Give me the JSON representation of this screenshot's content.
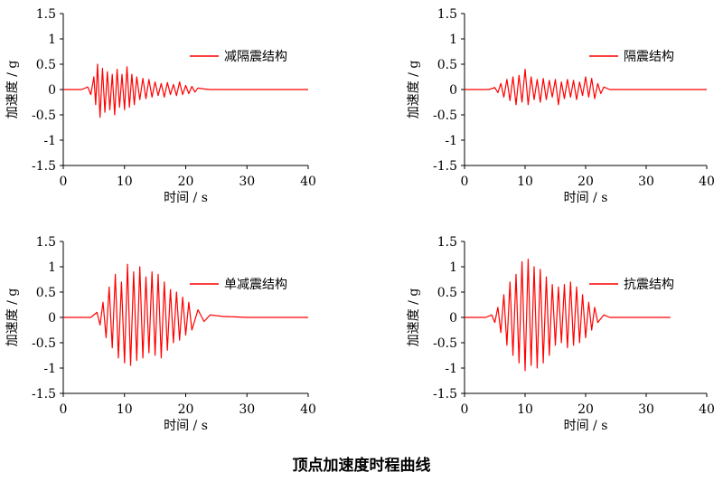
{
  "caption": "顶点加速度时程曲线",
  "chart_data": [
    {
      "type": "line",
      "legend": "减隔震结构",
      "xlabel": "时间 / s",
      "ylabel": "加速度 / g",
      "xlim": [
        0,
        40
      ],
      "ylim": [
        -1.5,
        1.5
      ],
      "xticks": [
        "0",
        "10",
        "20",
        "30",
        "40"
      ],
      "yticks": [
        "1.5",
        "1",
        "0.5",
        "0",
        "-0.5",
        "-1",
        "-1.5"
      ],
      "color": "#ff0000",
      "series": [
        {
          "x": [
            0,
            3,
            4,
            4.5,
            5,
            5.3,
            5.6,
            6,
            6.4,
            6.8,
            7.2,
            7.6,
            8,
            8.4,
            8.8,
            9.2,
            9.6,
            10,
            10.4,
            10.8,
            11.2,
            11.6,
            12,
            12.5,
            13,
            13.5,
            14,
            14.5,
            15,
            15.5,
            16,
            16.5,
            17,
            17.5,
            18,
            18.5,
            19,
            19.5,
            20,
            20.5,
            21,
            21.5,
            22,
            23,
            24,
            40
          ],
          "y": [
            0,
            0,
            0.05,
            -0.1,
            0.25,
            -0.3,
            0.5,
            -0.55,
            0.42,
            -0.45,
            0.35,
            -0.4,
            0.3,
            -0.5,
            0.4,
            -0.35,
            0.3,
            -0.4,
            0.45,
            -0.35,
            0.3,
            -0.3,
            0.25,
            -0.2,
            0.22,
            -0.18,
            0.2,
            -0.15,
            0.15,
            -0.12,
            0.12,
            -0.15,
            0.14,
            -0.1,
            0.1,
            -0.12,
            0.15,
            -0.1,
            0.08,
            -0.08,
            0.06,
            -0.05,
            0.03,
            0.01,
            0,
            0
          ]
        }
      ]
    },
    {
      "type": "line",
      "legend": "隔震结构",
      "xlabel": "时间 / s",
      "ylabel": "加速度 / g",
      "xlim": [
        0,
        40
      ],
      "ylim": [
        -1.5,
        1.5
      ],
      "xticks": [
        "0",
        "10",
        "20",
        "30",
        "40"
      ],
      "yticks": [
        "1.5",
        "1",
        "0.5",
        "0",
        "-0.5",
        "-1",
        "-1.5"
      ],
      "color": "#ff0000",
      "series": [
        {
          "x": [
            0,
            4,
            5,
            5.5,
            6,
            6.5,
            7,
            7.5,
            8,
            8.5,
            9,
            9.5,
            10,
            10.5,
            11,
            11.5,
            12,
            12.5,
            13,
            13.5,
            14,
            14.5,
            15,
            15.5,
            16,
            16.5,
            17,
            17.5,
            18,
            18.5,
            19,
            19.5,
            20,
            20.5,
            21,
            21.5,
            22,
            22.5,
            23,
            24,
            40
          ],
          "y": [
            0,
            0,
            0.04,
            -0.06,
            0.12,
            -0.15,
            0.2,
            -0.22,
            0.25,
            -0.3,
            0.28,
            -0.25,
            0.4,
            -0.3,
            0.25,
            -0.2,
            0.2,
            -0.25,
            0.22,
            -0.2,
            0.18,
            -0.15,
            0.2,
            -0.3,
            0.15,
            -0.18,
            0.2,
            -0.15,
            0.18,
            -0.2,
            0.15,
            -0.12,
            0.25,
            -0.15,
            0.22,
            -0.18,
            0.12,
            -0.08,
            0.05,
            0,
            0
          ]
        }
      ]
    },
    {
      "type": "line",
      "legend": "单减震结构",
      "xlabel": "时间 / s",
      "ylabel": "加速度 / g",
      "xlim": [
        0,
        40
      ],
      "ylim": [
        -1.5,
        1.5
      ],
      "xticks": [
        "0",
        "10",
        "20",
        "30",
        "40"
      ],
      "yticks": [
        "1.5",
        "1",
        "0.5",
        "0",
        "-0.5",
        "-1",
        "-1.5"
      ],
      "color": "#ff0000",
      "series": [
        {
          "x": [
            0,
            4.5,
            5.5,
            6,
            6.5,
            7,
            7.5,
            8,
            8.5,
            9,
            9.5,
            10,
            10.5,
            11,
            11.5,
            12,
            12.5,
            13,
            13.5,
            14,
            14.5,
            15,
            15.5,
            16,
            16.5,
            17,
            17.5,
            18,
            18.5,
            19,
            19.5,
            20,
            20.5,
            21,
            22,
            23,
            24,
            26,
            28,
            30,
            40
          ],
          "y": [
            0,
            0,
            0.1,
            -0.15,
            0.3,
            -0.4,
            0.6,
            -0.6,
            0.85,
            -0.8,
            0.7,
            -0.9,
            1.05,
            -0.95,
            0.9,
            -0.85,
            1.0,
            -0.8,
            0.8,
            -0.7,
            0.9,
            -0.75,
            0.85,
            -0.8,
            0.7,
            -0.65,
            0.55,
            -0.5,
            0.5,
            -0.45,
            0.4,
            -0.35,
            0.3,
            -0.25,
            0.15,
            -0.08,
            0.05,
            0.02,
            0.01,
            0,
            0
          ]
        }
      ]
    },
    {
      "type": "line",
      "legend": "抗震结构",
      "xlabel": "时间 / s",
      "ylabel": "加速度 / g",
      "xlim": [
        0,
        40
      ],
      "ylim": [
        -1.5,
        1.5
      ],
      "xticks": [
        "0",
        "10",
        "20",
        "30",
        "40"
      ],
      "yticks": [
        "1.5",
        "1",
        "0.5",
        "0",
        "-0.5",
        "-1",
        "-1.5"
      ],
      "color": "#ff0000",
      "series": [
        {
          "x": [
            0,
            3.5,
            4.5,
            5,
            5.5,
            6,
            6.5,
            7,
            7.5,
            8,
            8.5,
            9,
            9.5,
            10,
            10.5,
            11,
            11.5,
            12,
            12.5,
            13,
            13.5,
            14,
            14.5,
            15,
            15.5,
            16,
            16.5,
            17,
            17.5,
            18,
            18.5,
            19,
            19.5,
            20,
            20.5,
            21,
            21.5,
            22,
            23,
            24,
            34
          ],
          "y": [
            0,
            0,
            0.05,
            -0.1,
            0.2,
            -0.3,
            0.45,
            -0.55,
            0.7,
            -0.75,
            0.85,
            -0.9,
            1.1,
            -1.05,
            1.15,
            -0.95,
            1.0,
            -1.0,
            0.95,
            -0.9,
            0.8,
            -0.75,
            0.65,
            -0.55,
            0.6,
            -0.5,
            0.65,
            -0.6,
            0.7,
            -0.55,
            0.6,
            -0.5,
            0.45,
            -0.4,
            0.3,
            -0.25,
            0.2,
            -0.1,
            0.05,
            0,
            0
          ]
        }
      ]
    }
  ]
}
